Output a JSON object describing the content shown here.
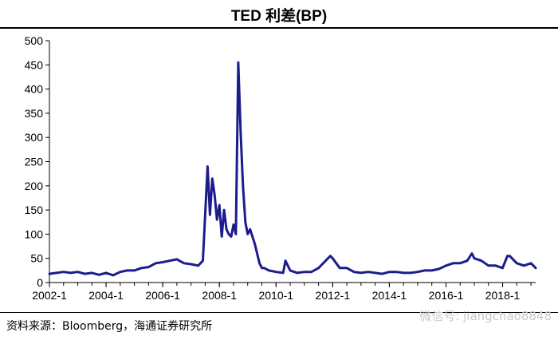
{
  "title": "TED 利差(BP)",
  "source": "资料来源：Bloomberg，海通证券研究所",
  "watermark": "微信号: jiangchao8848",
  "line_color": "#1c1c8c",
  "chart_data": {
    "type": "line",
    "title": "TED 利差(BP)",
    "xlabel": "",
    "ylabel": "",
    "xlim": [
      "2002-01",
      "2019-03"
    ],
    "ylim": [
      0,
      500
    ],
    "y_ticks": [
      0,
      50,
      100,
      150,
      200,
      250,
      300,
      350,
      400,
      450,
      500
    ],
    "x_tick_labels": [
      "2002-1",
      "2004-1",
      "2006-1",
      "2008-1",
      "2010-1",
      "2012-1",
      "2014-1",
      "2016-1",
      "2018-1"
    ],
    "grid": false,
    "legend": "none",
    "series": [
      {
        "x": [
          "2002-01",
          "2002-04",
          "2002-07",
          "2002-10",
          "2003-01",
          "2003-04",
          "2003-07",
          "2003-10",
          "2004-01",
          "2004-04",
          "2004-07",
          "2004-10",
          "2005-01",
          "2005-04",
          "2005-07",
          "2005-10",
          "2006-01",
          "2006-04",
          "2006-07",
          "2006-10",
          "2007-01",
          "2007-04",
          "2007-06",
          "2007-08",
          "2007-09",
          "2007-10",
          "2007-11",
          "2007-12",
          "2008-01",
          "2008-02",
          "2008-03",
          "2008-04",
          "2008-05",
          "2008-06",
          "2008-07",
          "2008-08",
          "2008-09",
          "2008-10",
          "2008-11",
          "2008-12",
          "2009-01",
          "2009-02",
          "2009-03",
          "2009-04",
          "2009-05",
          "2009-06",
          "2009-07",
          "2009-08",
          "2009-10",
          "2010-01",
          "2010-04",
          "2010-05",
          "2010-06",
          "2010-07",
          "2010-10",
          "2011-01",
          "2011-04",
          "2011-07",
          "2011-10",
          "2011-12",
          "2012-01",
          "2012-04",
          "2012-07",
          "2012-10",
          "2013-01",
          "2013-04",
          "2013-07",
          "2013-10",
          "2014-01",
          "2014-04",
          "2014-07",
          "2014-10",
          "2015-01",
          "2015-04",
          "2015-07",
          "2015-10",
          "2016-01",
          "2016-04",
          "2016-07",
          "2016-10",
          "2016-12",
          "2017-01",
          "2017-04",
          "2017-07",
          "2017-10",
          "2018-01",
          "2018-03",
          "2018-04",
          "2018-07",
          "2018-10",
          "2019-01",
          "2019-03"
        ],
        "y": [
          18,
          20,
          22,
          20,
          22,
          18,
          20,
          16,
          20,
          15,
          22,
          25,
          25,
          30,
          32,
          40,
          42,
          45,
          48,
          40,
          38,
          35,
          45,
          240,
          140,
          215,
          180,
          130,
          160,
          95,
          150,
          110,
          100,
          95,
          120,
          100,
          455,
          310,
          200,
          125,
          100,
          110,
          95,
          80,
          60,
          40,
          30,
          30,
          25,
          22,
          20,
          45,
          35,
          25,
          20,
          22,
          22,
          30,
          45,
          55,
          50,
          30,
          30,
          22,
          20,
          22,
          20,
          18,
          22,
          22,
          20,
          20,
          22,
          25,
          25,
          28,
          35,
          40,
          40,
          45,
          60,
          50,
          45,
          35,
          35,
          30,
          55,
          55,
          40,
          35,
          40,
          30
        ]
      }
    ]
  }
}
